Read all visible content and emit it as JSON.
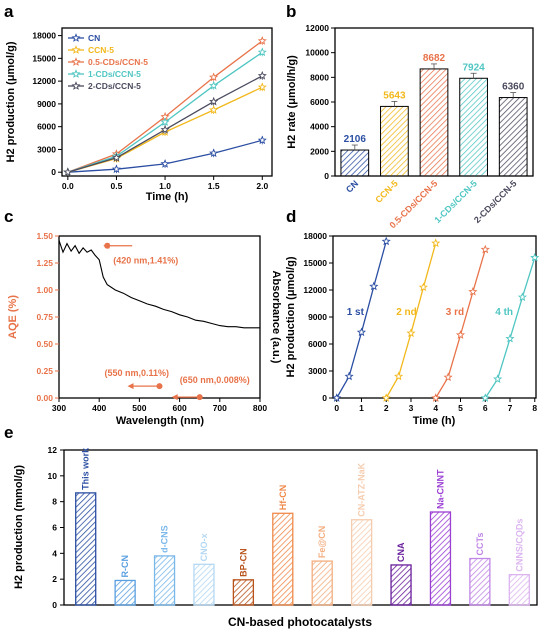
{
  "chart_data": [
    {
      "panel_label": "a",
      "type": "line",
      "xlabel": "Time (h)",
      "ylabel": "H2 production (μmol/g)",
      "xlim": [
        0,
        2.1
      ],
      "ylim": [
        0,
        19000
      ],
      "x": [
        0,
        0.5,
        1.0,
        1.5,
        2.0
      ],
      "xticks": [
        "0.0",
        "0.5",
        "1.0",
        "1.5",
        "2.0"
      ],
      "yticks": [
        0,
        3000,
        6000,
        9000,
        12000,
        15000,
        18000
      ],
      "legend_position": "top-left",
      "series": [
        {
          "name": "CN",
          "color": "#2b4ea2",
          "values": [
            0,
            400,
            1100,
            2500,
            4200
          ]
        },
        {
          "name": "CCN-5",
          "color": "#f2b81c",
          "values": [
            0,
            1800,
            5300,
            8200,
            11200
          ]
        },
        {
          "name": "0.5-CDs/CCN-5",
          "color": "#e8734a",
          "values": [
            0,
            2400,
            7300,
            12500,
            17300
          ]
        },
        {
          "name": "1-CDs/CCN-5",
          "color": "#4fc6c2",
          "values": [
            0,
            2100,
            6600,
            11400,
            15800
          ]
        },
        {
          "name": "2-CDs/CCN-5",
          "color": "#4a4a5e",
          "values": [
            0,
            1900,
            5600,
            9300,
            12700
          ]
        }
      ]
    },
    {
      "panel_label": "b",
      "type": "bar",
      "ylabel": "H2 rate (μmol/h/g)",
      "ylim": [
        0,
        12000
      ],
      "yticks": [
        0,
        2000,
        4000,
        6000,
        8000,
        10000,
        12000
      ],
      "categories": [
        "CN",
        "CCN-5",
        "0.5-CDs/CCN-5",
        "1-CDs/CCN-5",
        "2-CDs/CCN-5"
      ],
      "values": [
        2106,
        5643,
        8682,
        7924,
        6360
      ],
      "value_labels": [
        "2106",
        "5643",
        "8682",
        "7924",
        "6360"
      ],
      "colors": [
        "#2b4ea2",
        "#f2b81c",
        "#e8734a",
        "#4fc6c2",
        "#4a4a5e"
      ]
    },
    {
      "panel_label": "c",
      "type": "line",
      "xlabel": "Wavelength (nm)",
      "ylabel_left": "AQE (%)",
      "ylabel_right": "Absorbance (a.u.)",
      "xlim": [
        300,
        800
      ],
      "ylim": [
        0,
        1.5
      ],
      "xticks": [
        300,
        400,
        500,
        600,
        700,
        800
      ],
      "yticks": [
        "0.00",
        "0.25",
        "0.50",
        "0.75",
        "1.00",
        "1.25",
        "1.50"
      ],
      "aqe_color": "#e8734a",
      "aqe_points": [
        {
          "x": 420,
          "y": 1.41,
          "label": "(420 nm,1.41%)"
        },
        {
          "x": 550,
          "y": 0.11,
          "label": "(550 nm,0.11%)"
        },
        {
          "x": 650,
          "y": 0.008,
          "label": "(650 nm,0.008%)"
        }
      ],
      "absorbance": {
        "x": [
          300,
          310,
          320,
          330,
          340,
          350,
          360,
          370,
          380,
          390,
          400,
          410,
          420,
          440,
          460,
          480,
          500,
          520,
          540,
          560,
          580,
          600,
          620,
          640,
          660,
          680,
          700,
          720,
          740,
          760,
          780,
          800
        ],
        "y": [
          1.46,
          1.35,
          1.43,
          1.36,
          1.41,
          1.34,
          1.39,
          1.35,
          1.37,
          1.32,
          1.28,
          1.12,
          1.05,
          1.0,
          0.97,
          0.93,
          0.9,
          0.87,
          0.85,
          0.82,
          0.8,
          0.77,
          0.75,
          0.72,
          0.71,
          0.69,
          0.67,
          0.66,
          0.66,
          0.65,
          0.65,
          0.65
        ]
      }
    },
    {
      "panel_label": "d",
      "type": "line",
      "xlabel": "Time (h)",
      "ylabel": "H2 production (μmol/g)",
      "xlim": [
        0,
        8
      ],
      "ylim": [
        0,
        18000
      ],
      "xticks": [
        0,
        1,
        2,
        3,
        4,
        5,
        6,
        7,
        8
      ],
      "yticks": [
        0,
        3000,
        6000,
        9000,
        12000,
        15000,
        18000
      ],
      "series": [
        {
          "name": "1 st",
          "color": "#2b4ea2",
          "x": [
            0,
            0.5,
            1.0,
            1.5,
            2.0
          ],
          "values": [
            0,
            2400,
            7300,
            12400,
            17400
          ]
        },
        {
          "name": "2 nd",
          "color": "#f2b81c",
          "x": [
            2.0,
            2.5,
            3.0,
            3.5,
            4.0
          ],
          "values": [
            0,
            2400,
            7200,
            12300,
            17200
          ]
        },
        {
          "name": "3 rd",
          "color": "#e8734a",
          "x": [
            4.0,
            4.5,
            5.0,
            5.5,
            6.0
          ],
          "values": [
            0,
            2300,
            7000,
            11800,
            16500
          ]
        },
        {
          "name": "4 th",
          "color": "#4fc6c2",
          "x": [
            6.0,
            6.5,
            7.0,
            7.5,
            8.0
          ],
          "values": [
            0,
            2100,
            6600,
            11200,
            15600
          ]
        }
      ]
    },
    {
      "panel_label": "e",
      "type": "bar",
      "xlabel": "CN-based photocatalysts",
      "ylabel": "H2 production (mmol/g)",
      "ylim": [
        0,
        12
      ],
      "yticks": [
        0,
        2,
        4,
        6,
        8,
        10,
        12
      ],
      "categories": [
        "This work",
        "R-CN",
        "d-CNS",
        "CNO-x",
        "BP-CN",
        "Hf-CN",
        "Fe@CN",
        "CN-ATZ-NaK",
        "CNA",
        "Na-CNNT",
        "CCTs",
        "CNNS/CQDs"
      ],
      "values": [
        8.68,
        1.9,
        3.8,
        3.15,
        1.95,
        7.1,
        3.4,
        6.6,
        3.1,
        7.2,
        3.6,
        2.35
      ],
      "colors": [
        "#2b4ea2",
        "#5a9fe0",
        "#7bb8ea",
        "#b4d8f4",
        "#b9531c",
        "#f08a4b",
        "#f3ae80",
        "#f6ccae",
        "#6a1f9c",
        "#9b3fd4",
        "#c187e6",
        "#dcb5f0"
      ]
    }
  ]
}
